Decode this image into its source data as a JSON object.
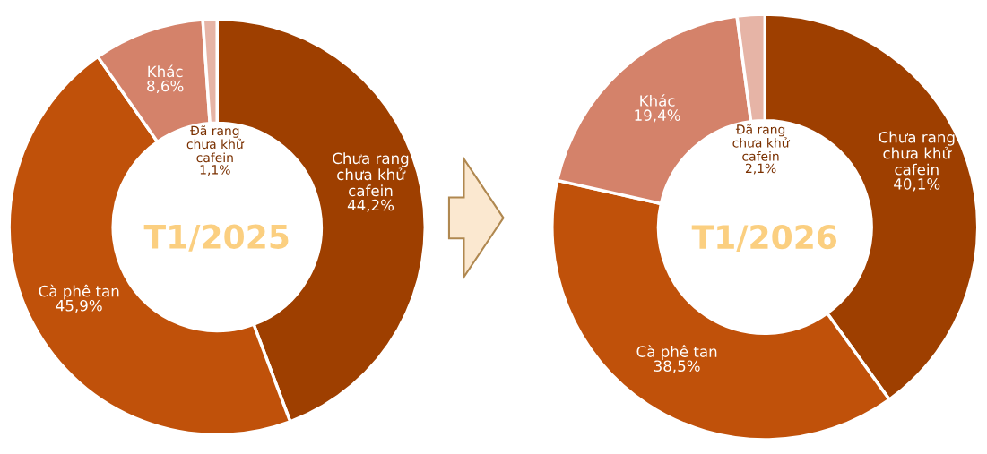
{
  "chart_data": [
    {
      "type": "donut",
      "title": "T1/2025",
      "categories": [
        "Chưa rang\nchưa khử\ncafein",
        "Cà phê tan",
        "Khác",
        "Đã rang\nchưa khử\ncafein"
      ],
      "values": [
        44.2,
        45.9,
        8.6,
        1.1
      ],
      "value_labels": [
        "44,2%",
        "45,9%",
        "8,6%",
        "1,1%"
      ],
      "colors": [
        "#9e3f00",
        "#c0510a",
        "#d4826a",
        "#e6b4a6"
      ]
    },
    {
      "type": "donut",
      "title": "T1/2026",
      "categories": [
        "Chưa rang\nchưa khử\ncafein",
        "Cà phê tan",
        "Khác",
        "Đã rang\nchưa khử\ncafein"
      ],
      "values": [
        40.1,
        38.5,
        19.4,
        2.1
      ],
      "value_labels": [
        "40,1%",
        "38,5%",
        "19,4%",
        "2,1%"
      ],
      "colors": [
        "#9e3f00",
        "#c0510a",
        "#d4826a",
        "#e6b4a6"
      ]
    }
  ]
}
